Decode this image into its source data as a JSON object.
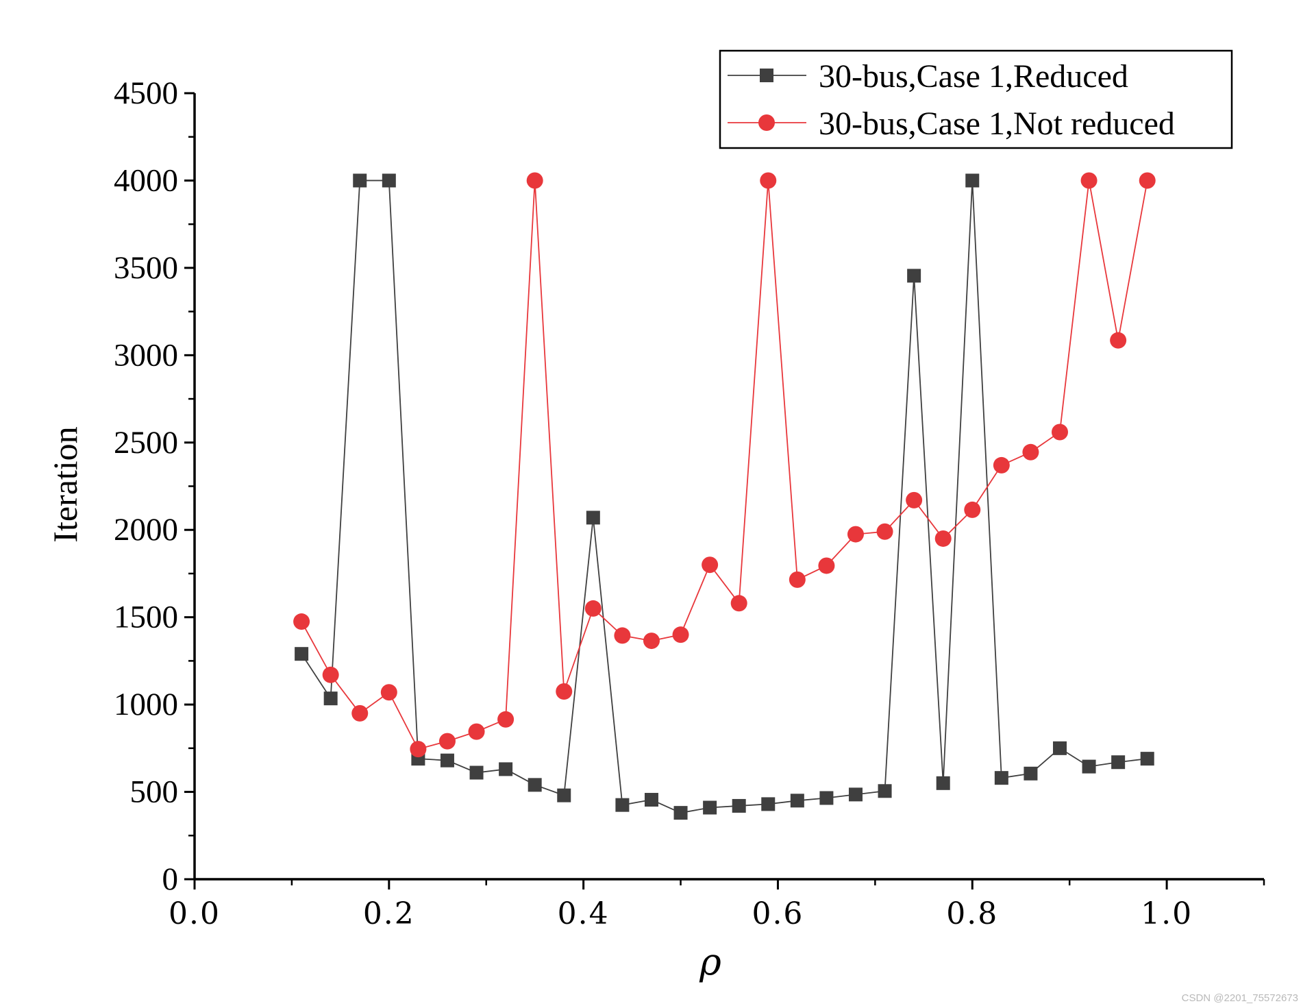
{
  "chart_data": {
    "type": "line",
    "xlabel": "ρ",
    "ylabel": "Iteration",
    "xlim": [
      0.0,
      1.1
    ],
    "ylim": [
      0,
      4500
    ],
    "x_ticks": [
      "0.0",
      "0.2",
      "0.4",
      "0.6",
      "0.8",
      "1.0"
    ],
    "y_ticks": [
      "0",
      "500",
      "1000",
      "1500",
      "2000",
      "2500",
      "3000",
      "3500",
      "4000",
      "4500"
    ],
    "grid": false,
    "legend_position": "top-right",
    "x": [
      0.11,
      0.14,
      0.17,
      0.2,
      0.23,
      0.26,
      0.29,
      0.32,
      0.35,
      0.38,
      0.41,
      0.44,
      0.47,
      0.5,
      0.53,
      0.56,
      0.59,
      0.62,
      0.65,
      0.68,
      0.71,
      0.74,
      0.77,
      0.8,
      0.83,
      0.86,
      0.89,
      0.92,
      0.95,
      0.98
    ],
    "series": [
      {
        "name": "30-bus,Case 1,Reduced",
        "color": "#3f3f3f",
        "marker": "square",
        "values": [
          1290,
          1035,
          4000,
          4000,
          690,
          680,
          610,
          630,
          540,
          480,
          2070,
          425,
          455,
          380,
          410,
          420,
          430,
          450,
          465,
          485,
          505,
          3455,
          550,
          4000,
          580,
          605,
          750,
          645,
          670,
          690
        ]
      },
      {
        "name": "30-bus,Case 1,Not reduced",
        "color": "#e8373b",
        "marker": "circle",
        "values": [
          1475,
          1170,
          950,
          1070,
          745,
          790,
          845,
          915,
          4000,
          1075,
          1550,
          1395,
          1365,
          1400,
          1800,
          1580,
          4000,
          1715,
          1795,
          1975,
          1990,
          2170,
          1950,
          2115,
          2370,
          2445,
          2560,
          4000,
          3085,
          4000
        ]
      }
    ]
  },
  "watermark": "CSDN @2201_75572673"
}
